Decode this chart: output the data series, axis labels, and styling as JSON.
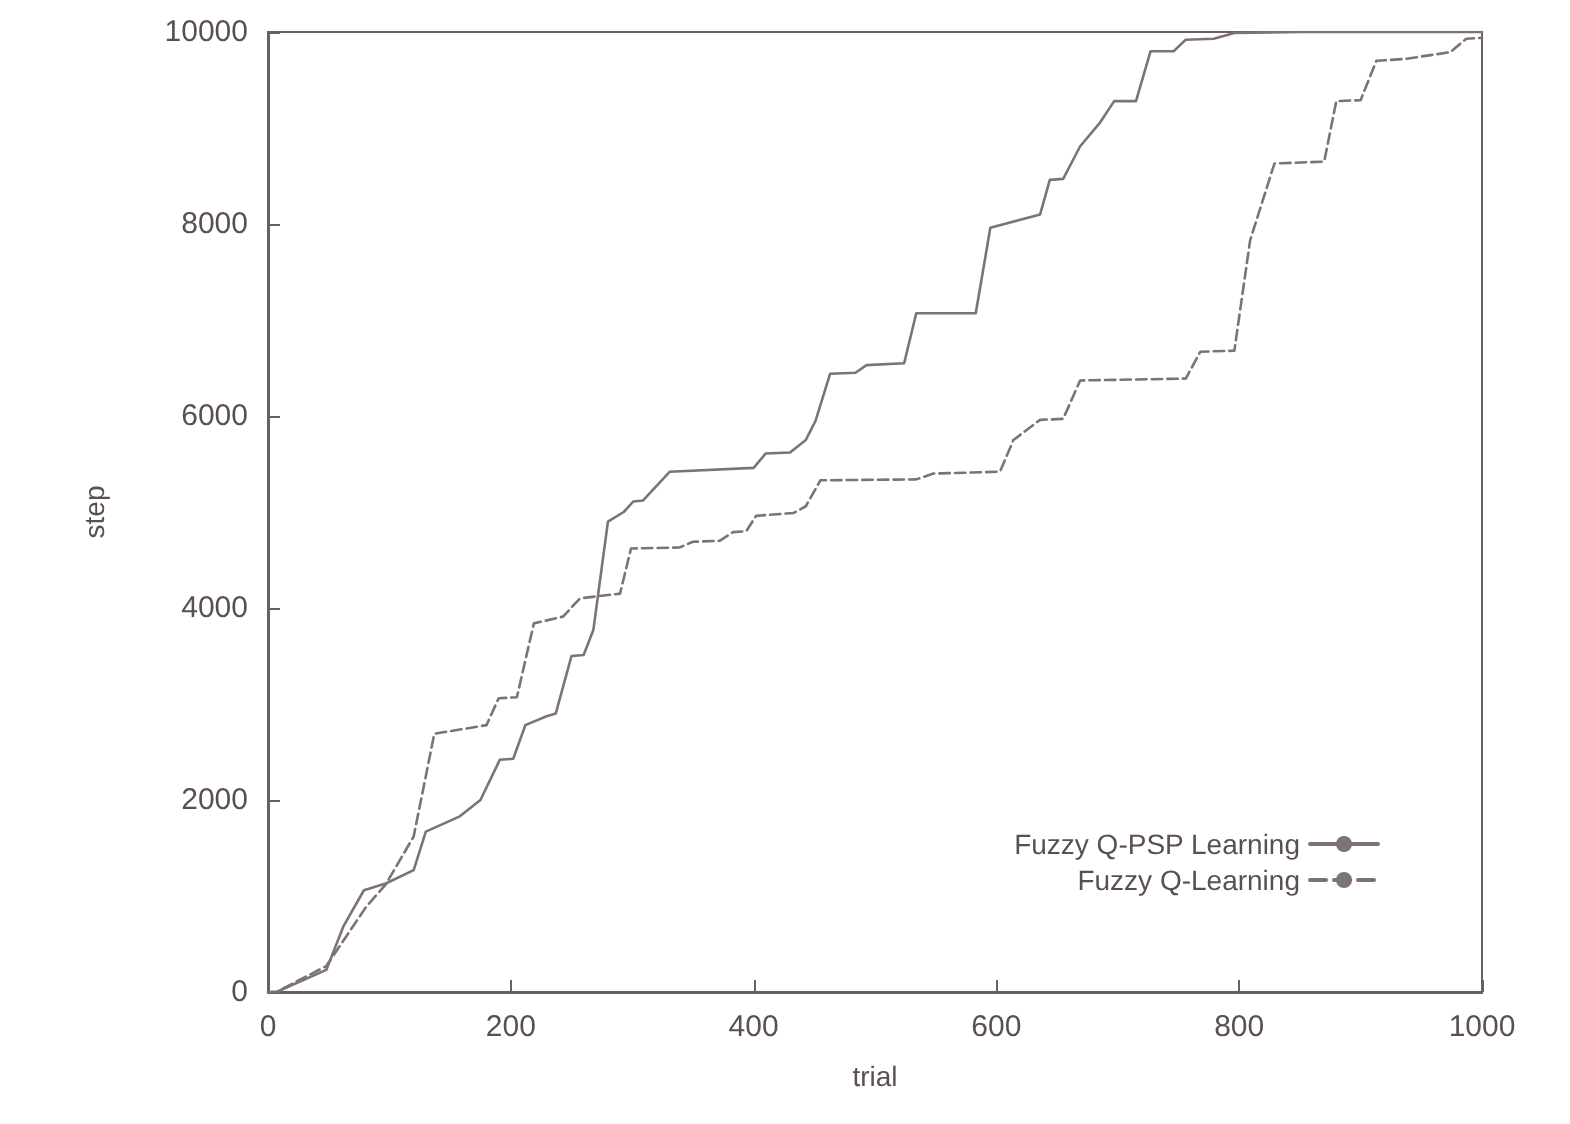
{
  "chart_data": {
    "type": "line",
    "xlabel": "trial",
    "ylabel": "step",
    "xlim": [
      0,
      1000
    ],
    "ylim": [
      0,
      10000
    ],
    "xticks": [
      0,
      200,
      400,
      600,
      800,
      1000
    ],
    "yticks": [
      0,
      2000,
      4000,
      6000,
      8000,
      10000
    ],
    "grid": false,
    "legend": "bottom right",
    "marker": "none",
    "series": [
      {
        "name": "Fuzzy Q-PSP Learning",
        "color": "#7d7275",
        "line_style": "solid",
        "x": [
          0,
          7,
          48,
          62,
          79,
          97,
          120,
          130,
          158,
          175,
          191,
          202,
          212,
          229,
          237,
          250,
          260,
          268,
          280,
          293,
          301,
          309,
          331,
          400,
          410,
          430,
          443,
          451,
          463,
          484,
          493,
          524,
          534,
          583,
          595,
          636,
          644,
          655,
          669,
          685,
          697,
          715,
          727,
          746,
          756,
          779,
          796,
          850,
          1000
        ],
        "values": [
          0,
          0,
          230,
          680,
          1060,
          1130,
          1270,
          1670,
          1830,
          2000,
          2420,
          2430,
          2780,
          2870,
          2900,
          3500,
          3510,
          3770,
          4900,
          5000,
          5110,
          5120,
          5420,
          5460,
          5610,
          5620,
          5750,
          5950,
          6440,
          6450,
          6530,
          6550,
          7070,
          7070,
          7960,
          8100,
          8460,
          8470,
          8810,
          9050,
          9280,
          9280,
          9800,
          9800,
          9920,
          9930,
          9990,
          10000,
          10000
        ]
      },
      {
        "name": "Fuzzy Q-Learning",
        "color": "#7d7275",
        "line_style": "dashed",
        "x": [
          0,
          7,
          48,
          81,
          97,
          120,
          137,
          180,
          190,
          205,
          219,
          243,
          257,
          290,
          299,
          339,
          350,
          372,
          383,
          394,
          402,
          433,
          443,
          455,
          534,
          548,
          603,
          614,
          636,
          655,
          669,
          756,
          768,
          796,
          809,
          829,
          870,
          880,
          900,
          913,
          937,
          974,
          987,
          1000
        ],
        "values": [
          0,
          0,
          270,
          890,
          1120,
          1620,
          2690,
          2780,
          3060,
          3070,
          3840,
          3910,
          4100,
          4150,
          4620,
          4630,
          4690,
          4700,
          4790,
          4800,
          4960,
          4990,
          5060,
          5330,
          5340,
          5400,
          5420,
          5750,
          5960,
          5970,
          6370,
          6390,
          6670,
          6680,
          7830,
          8630,
          8650,
          9280,
          9290,
          9700,
          9720,
          9790,
          9930,
          9940
        ]
      }
    ]
  }
}
